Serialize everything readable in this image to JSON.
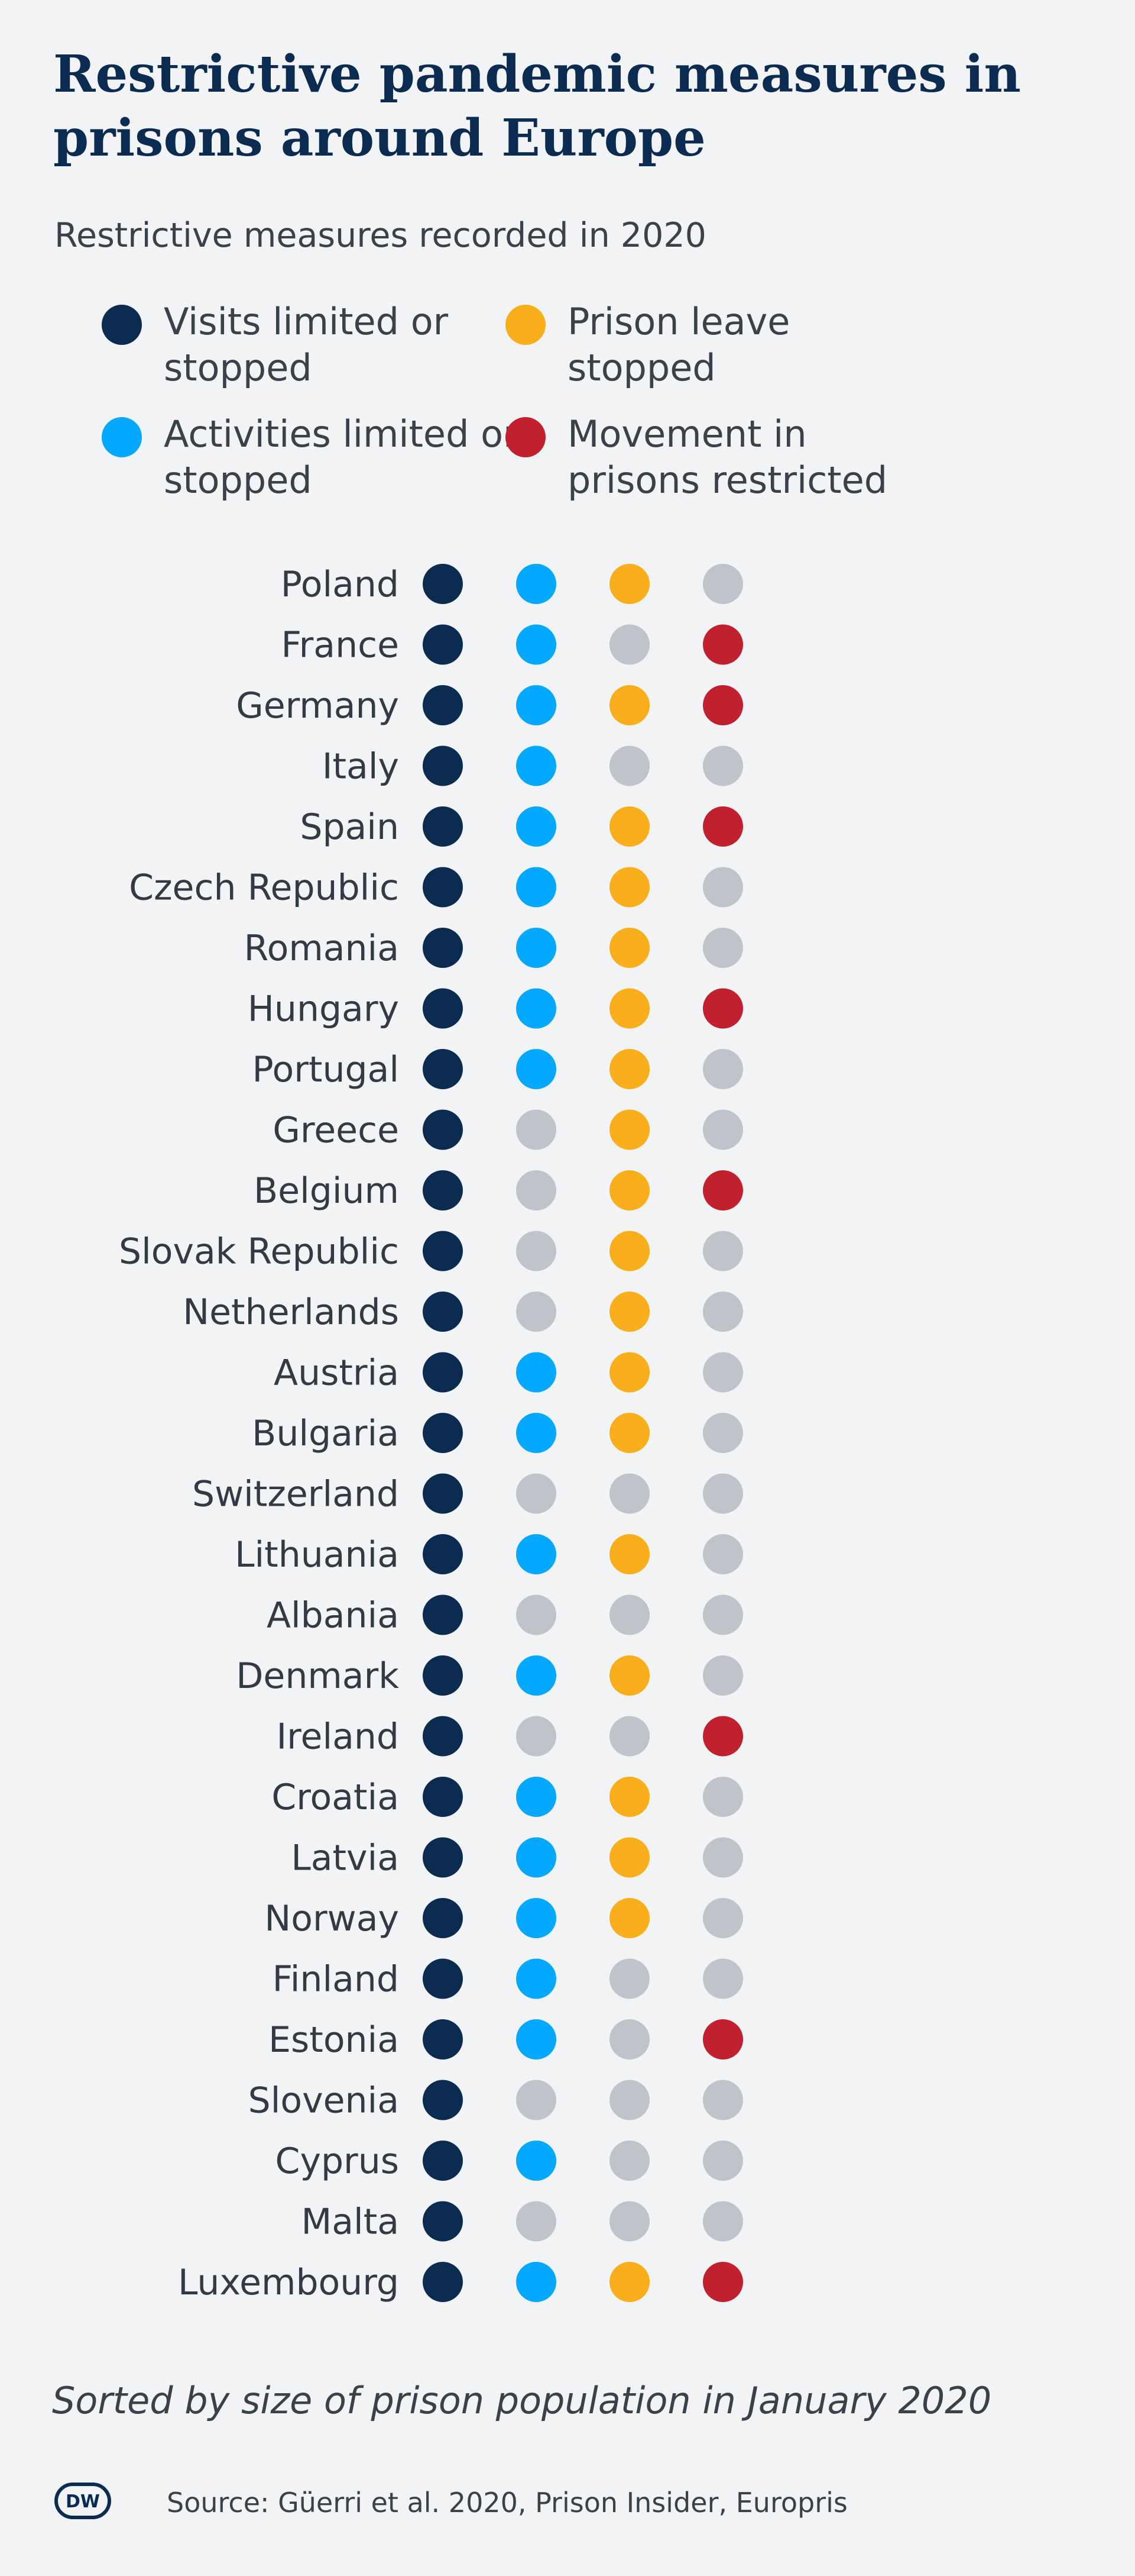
{
  "header": {
    "title": "Restrictive pandemic measures in prisons around Europe",
    "subtitle": "Restrictive measures recorded in 2020"
  },
  "legend": [
    {
      "label": "Visits limited or stopped",
      "color": "#0c2b50"
    },
    {
      "label": "Prison leave stopped",
      "color": "#f9af1c"
    },
    {
      "label": "Activities limited or stopped",
      "color": "#05a8ff"
    },
    {
      "label": "Movement in prisons restricted",
      "color": "#c1202e"
    }
  ],
  "inactive_color": "#bfc4ca",
  "chart_data": {
    "type": "table",
    "columns": [
      "Visits limited or stopped",
      "Activities limited or stopped",
      "Prison leave stopped",
      "Movement in prisons restricted"
    ],
    "column_colors": [
      "#0c2b50",
      "#05a8ff",
      "#f9af1c",
      "#c1202e"
    ],
    "rows": [
      {
        "country": "Poland",
        "values": [
          1,
          1,
          1,
          0
        ]
      },
      {
        "country": "France",
        "values": [
          1,
          1,
          0,
          1
        ]
      },
      {
        "country": "Germany",
        "values": [
          1,
          1,
          1,
          1
        ]
      },
      {
        "country": "Italy",
        "values": [
          1,
          1,
          0,
          0
        ]
      },
      {
        "country": "Spain",
        "values": [
          1,
          1,
          1,
          1
        ]
      },
      {
        "country": "Czech Republic",
        "values": [
          1,
          1,
          1,
          0
        ]
      },
      {
        "country": "Romania",
        "values": [
          1,
          1,
          1,
          0
        ]
      },
      {
        "country": "Hungary",
        "values": [
          1,
          1,
          1,
          1
        ]
      },
      {
        "country": "Portugal",
        "values": [
          1,
          1,
          1,
          0
        ]
      },
      {
        "country": "Greece",
        "values": [
          1,
          0,
          1,
          0
        ]
      },
      {
        "country": "Belgium",
        "values": [
          1,
          0,
          1,
          1
        ]
      },
      {
        "country": "Slovak Republic",
        "values": [
          1,
          0,
          1,
          0
        ]
      },
      {
        "country": "Netherlands",
        "values": [
          1,
          0,
          1,
          0
        ]
      },
      {
        "country": "Austria",
        "values": [
          1,
          1,
          1,
          0
        ]
      },
      {
        "country": "Bulgaria",
        "values": [
          1,
          1,
          1,
          0
        ]
      },
      {
        "country": "Switzerland",
        "values": [
          1,
          0,
          0,
          0
        ]
      },
      {
        "country": "Lithuania",
        "values": [
          1,
          1,
          1,
          0
        ]
      },
      {
        "country": "Albania",
        "values": [
          1,
          0,
          0,
          0
        ]
      },
      {
        "country": "Denmark",
        "values": [
          1,
          1,
          1,
          0
        ]
      },
      {
        "country": "Ireland",
        "values": [
          1,
          0,
          0,
          1
        ]
      },
      {
        "country": "Croatia",
        "values": [
          1,
          1,
          1,
          0
        ]
      },
      {
        "country": "Latvia",
        "values": [
          1,
          1,
          1,
          0
        ]
      },
      {
        "country": "Norway",
        "values": [
          1,
          1,
          1,
          0
        ]
      },
      {
        "country": "Finland",
        "values": [
          1,
          1,
          0,
          0
        ]
      },
      {
        "country": "Estonia",
        "values": [
          1,
          1,
          0,
          1
        ]
      },
      {
        "country": "Slovenia",
        "values": [
          1,
          0,
          0,
          0
        ]
      },
      {
        "country": "Cyprus",
        "values": [
          1,
          1,
          0,
          0
        ]
      },
      {
        "country": "Malta",
        "values": [
          1,
          0,
          0,
          0
        ]
      },
      {
        "country": "Luxembourg",
        "values": [
          1,
          1,
          1,
          1
        ]
      }
    ]
  },
  "footer": {
    "note": "Sorted by size of prison population in January 2020",
    "logo_text": "DW",
    "source": "Source: Güerri et al. 2020, Prison Insider, Europris"
  }
}
